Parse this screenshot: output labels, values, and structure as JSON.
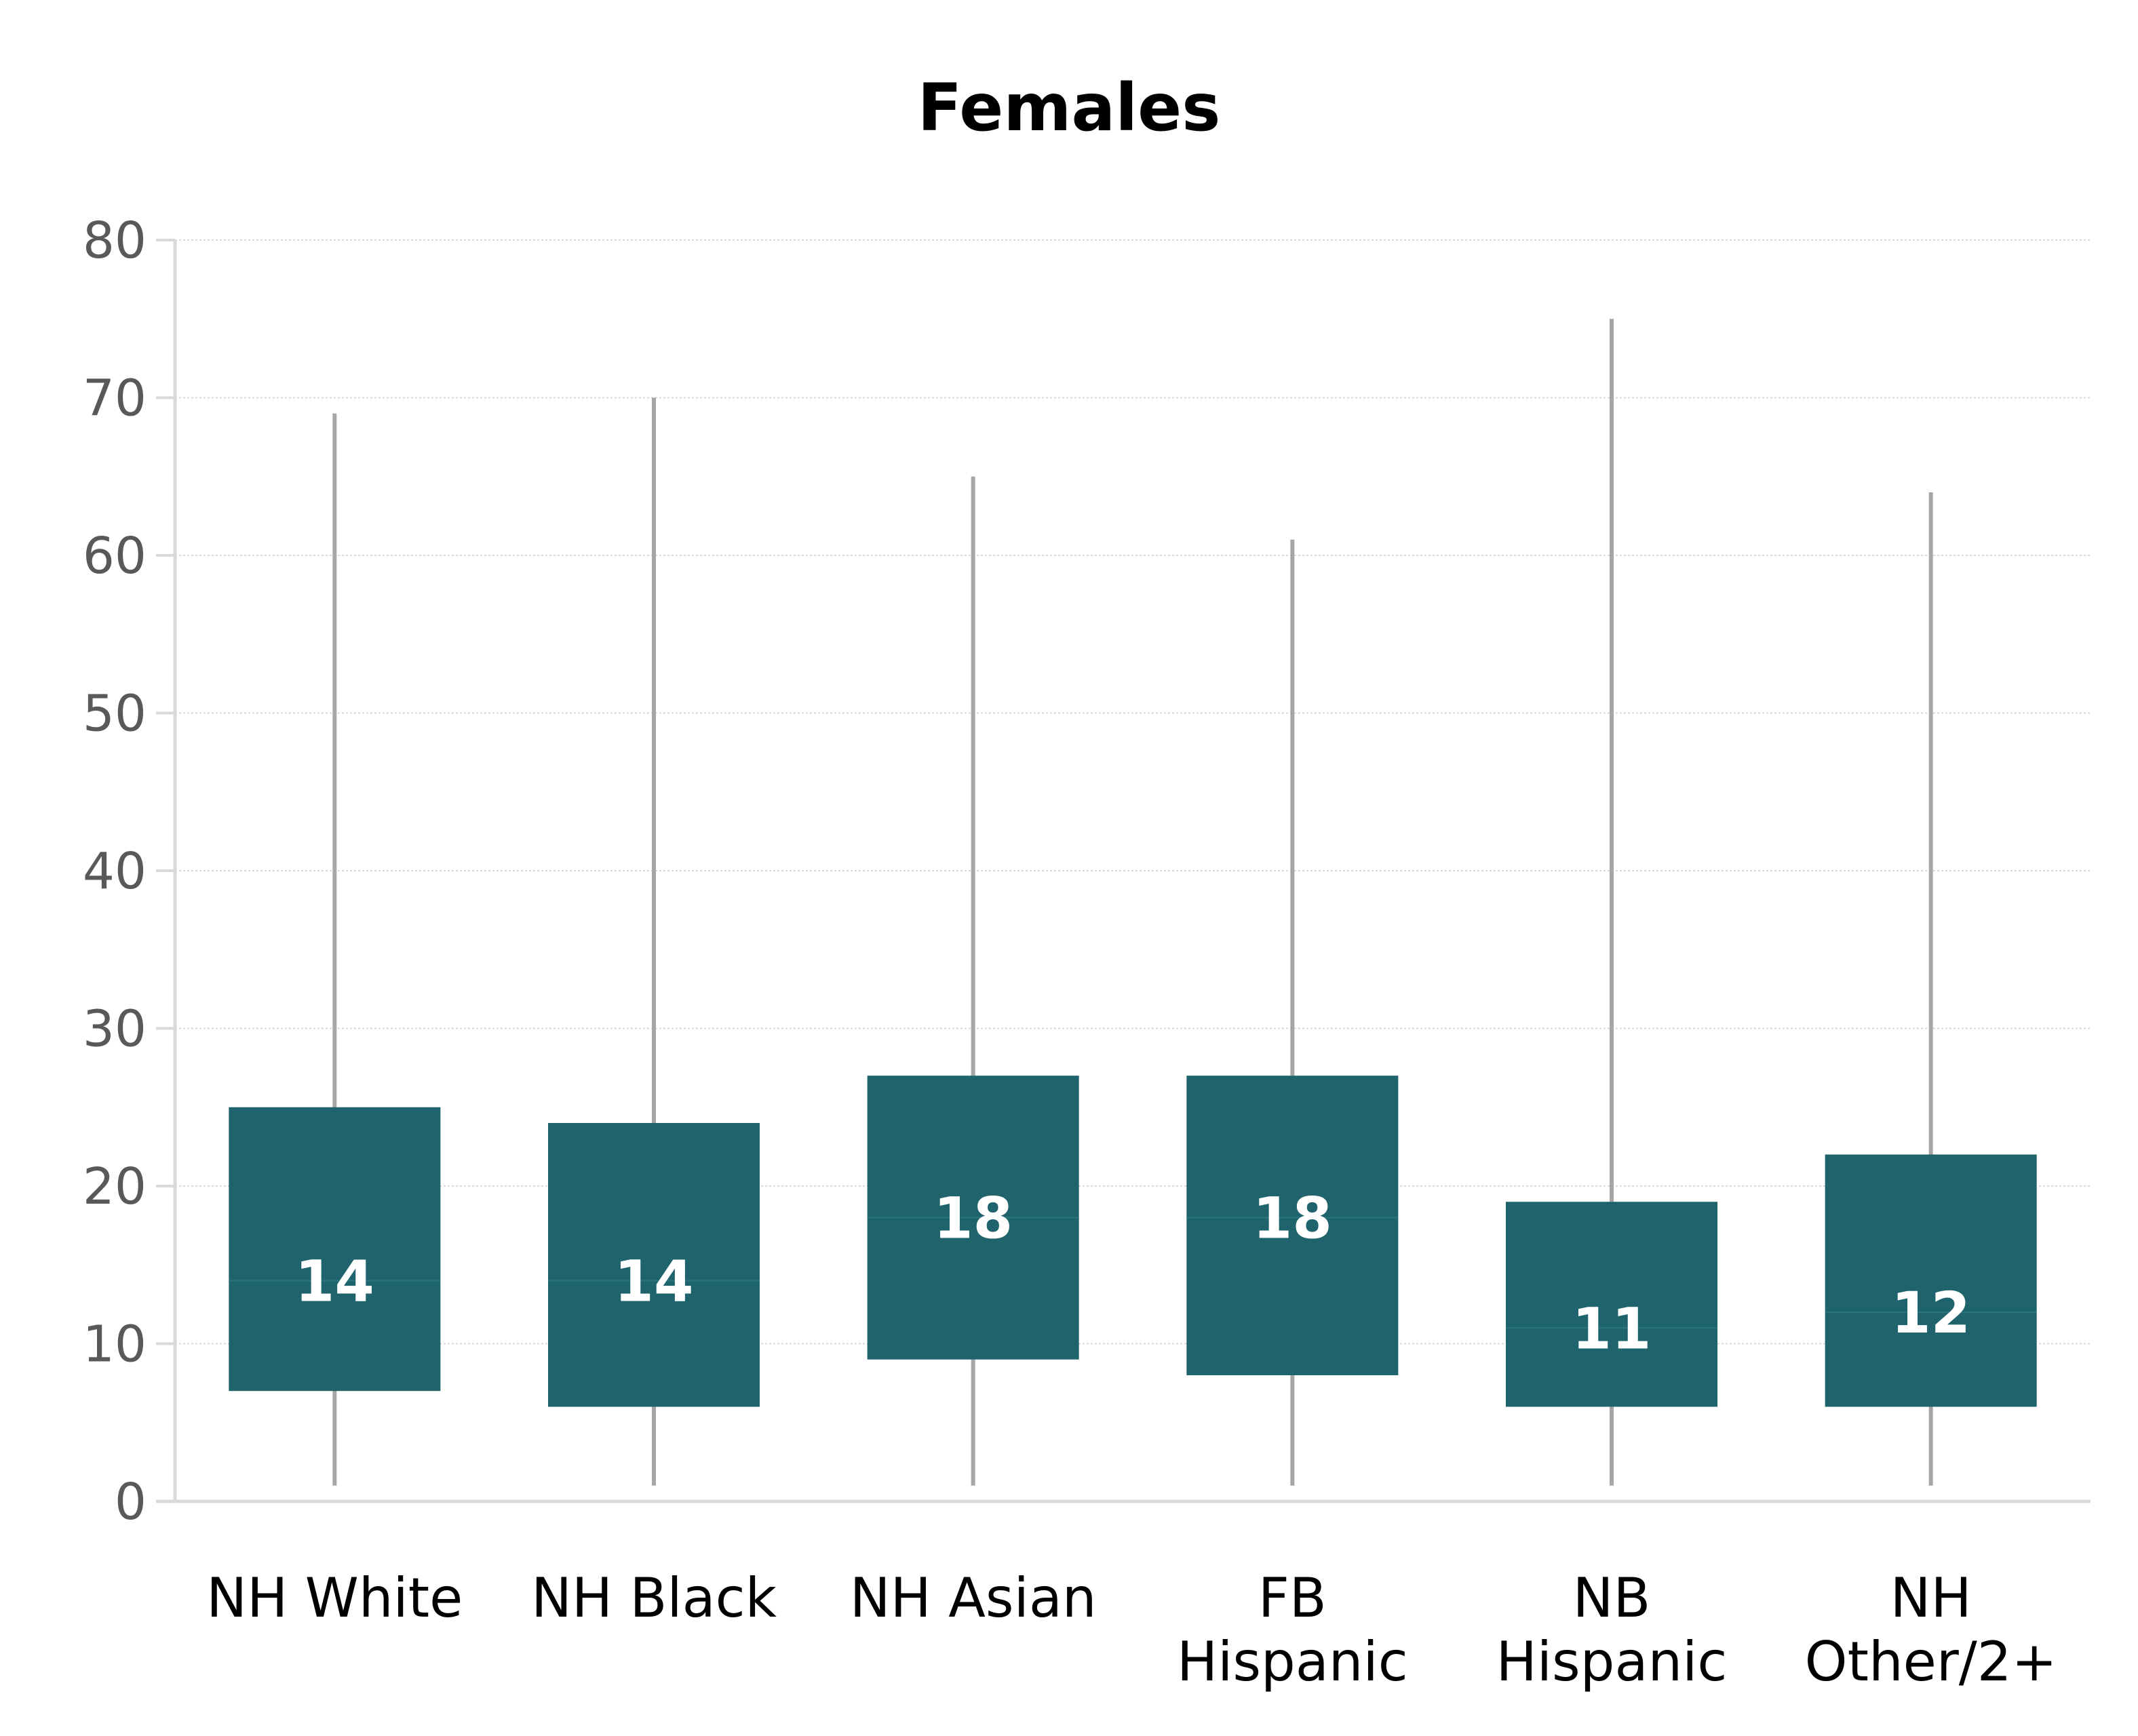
{
  "chart_data": {
    "type": "boxplot",
    "title": "Females",
    "xlabel": "",
    "ylabel": "",
    "ylim": [
      0,
      80
    ],
    "yticks": [
      0,
      10,
      20,
      30,
      40,
      50,
      60,
      70,
      80
    ],
    "grid": true,
    "categories": [
      [
        "NH White"
      ],
      [
        "NH Black"
      ],
      [
        "NH Asian"
      ],
      [
        "FB",
        "Hispanic"
      ],
      [
        "NB",
        "Hispanic"
      ],
      [
        "NH",
        "Other/2+"
      ]
    ],
    "boxes": [
      {
        "min": 1,
        "q1": 7,
        "median": 14,
        "q3": 25,
        "max": 69,
        "label": "14"
      },
      {
        "min": 1,
        "q1": 6,
        "median": 14,
        "q3": 24,
        "max": 70,
        "label": "14"
      },
      {
        "min": 1,
        "q1": 9,
        "median": 18,
        "q3": 27,
        "max": 65,
        "label": "18"
      },
      {
        "min": 1,
        "q1": 8,
        "median": 18,
        "q3": 27,
        "max": 61,
        "label": "18"
      },
      {
        "min": 1,
        "q1": 6,
        "median": 11,
        "q3": 19,
        "max": 75,
        "label": "11"
      },
      {
        "min": 1,
        "q1": 6,
        "median": 12,
        "q3": 22,
        "max": 64,
        "label": "12"
      }
    ],
    "colors": {
      "box": "#1f636c",
      "whisker": "#a6a6a6",
      "grid": "#d9d9d9",
      "axis": "#d9d9d9"
    }
  }
}
